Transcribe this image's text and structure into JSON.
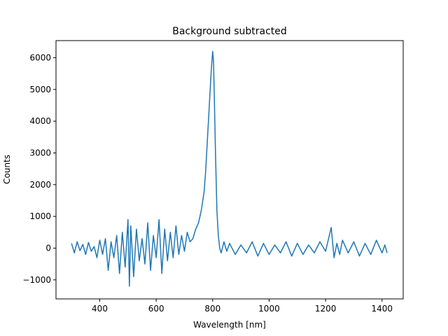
{
  "chart_data": {
    "type": "line",
    "title": "Background subtracted",
    "xlabel": "Wavelength [nm]",
    "ylabel": "Counts",
    "xlim": [
      245,
      1475
    ],
    "ylim": [
      -1600,
      6540
    ],
    "x_ticks": [
      400,
      600,
      800,
      1000,
      1200,
      1400
    ],
    "y_ticks": [
      -1000,
      0,
      1000,
      2000,
      3000,
      4000,
      5000,
      6000
    ],
    "x_tick_labels": [
      "400",
      "600",
      "800",
      "1000",
      "1200",
      "1400"
    ],
    "y_tick_labels": [
      "−1000",
      "0",
      "1000",
      "2000",
      "3000",
      "4000",
      "5000",
      "6000"
    ],
    "grid": false,
    "series": [
      {
        "color": "#1f77b4",
        "x": [
          300,
          310,
          320,
          330,
          340,
          350,
          360,
          370,
          380,
          390,
          400,
          410,
          420,
          430,
          440,
          450,
          460,
          470,
          480,
          490,
          500,
          505,
          510,
          520,
          530,
          540,
          550,
          560,
          570,
          580,
          590,
          600,
          610,
          620,
          630,
          640,
          650,
          660,
          670,
          680,
          690,
          700,
          710,
          720,
          730,
          740,
          750,
          760,
          770,
          775,
          780,
          785,
          790,
          795,
          800,
          803,
          806,
          810,
          815,
          820,
          825,
          830,
          840,
          850,
          860,
          880,
          900,
          920,
          940,
          960,
          980,
          1000,
          1020,
          1040,
          1060,
          1080,
          1100,
          1120,
          1140,
          1160,
          1180,
          1200,
          1220,
          1230,
          1240,
          1250,
          1260,
          1280,
          1300,
          1320,
          1340,
          1360,
          1380,
          1400,
          1410,
          1418
        ],
        "y": [
          150,
          -150,
          200,
          -80,
          120,
          -200,
          180,
          -100,
          50,
          -300,
          250,
          -200,
          300,
          -700,
          200,
          -300,
          400,
          -800,
          500,
          -600,
          900,
          -1200,
          700,
          -900,
          600,
          -400,
          300,
          -500,
          800,
          -700,
          400,
          -300,
          900,
          -800,
          600,
          -400,
          500,
          -300,
          700,
          -200,
          400,
          -100,
          500,
          200,
          300,
          600,
          800,
          1200,
          1800,
          2400,
          3200,
          4000,
          4800,
          5600,
          6200,
          5900,
          4700,
          3000,
          1200,
          400,
          0,
          -150,
          200,
          -100,
          150,
          -200,
          100,
          -150,
          200,
          -250,
          150,
          -200,
          100,
          -150,
          200,
          -250,
          150,
          -200,
          100,
          -150,
          200,
          -100,
          650,
          -300,
          150,
          -200,
          250,
          -150,
          200,
          -250,
          150,
          -200,
          250,
          -150,
          100,
          -150
        ]
      }
    ]
  }
}
